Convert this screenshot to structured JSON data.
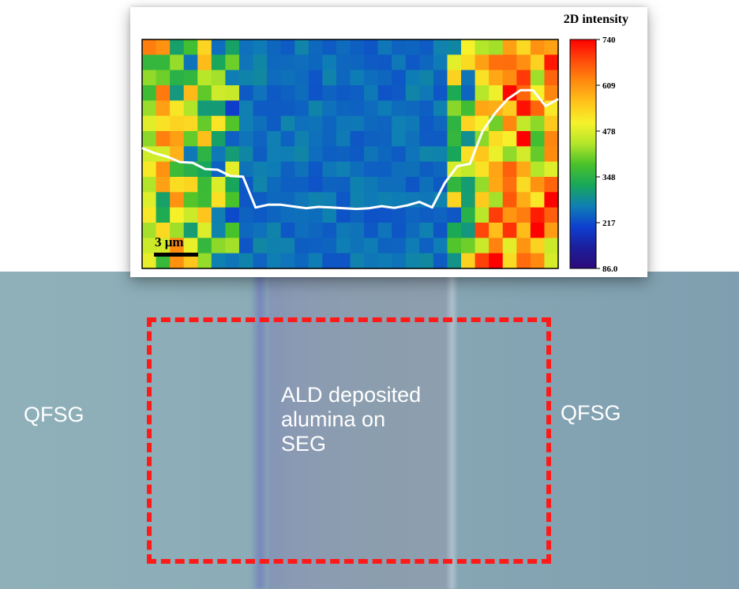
{
  "optical_image": {
    "left_label": "QFSG",
    "right_label": "QFSG",
    "center_label_lines": [
      "ALD deposited",
      "alumina on",
      "SEG"
    ],
    "box_color": "#ff1a1a"
  },
  "chart_data": {
    "type": "heatmap",
    "title": "2D intensity",
    "scale_bar": "3 μm",
    "colorbar": {
      "ticks": [
        "740",
        "609",
        "478",
        "348",
        "217",
        "86.0"
      ],
      "min": 86.0,
      "max": 740,
      "colors": [
        "#2d0a7a",
        "#1c1e9c",
        "#0d3fd0",
        "#0f7fb4",
        "#18a75a",
        "#49c22a",
        "#b4e62a",
        "#f6f22a",
        "#ffc21b",
        "#ff8a0f",
        "#ff4a0a",
        "#ff0000"
      ]
    },
    "grid": {
      "rows": 15,
      "cols": 30
    },
    "column_mean_intensity": [
      500,
      470,
      460,
      410,
      400,
      370,
      360,
      250,
      255,
      255,
      250,
      250,
      248,
      248,
      246,
      246,
      246,
      245,
      248,
      250,
      255,
      250,
      380,
      390,
      470,
      540,
      580,
      585,
      540,
      560
    ],
    "profile": [
      430,
      415,
      405,
      390,
      388,
      370,
      368,
      350,
      348,
      260,
      268,
      268,
      263,
      258,
      262,
      260,
      258,
      256,
      258,
      264,
      259,
      266,
      276,
      260,
      330,
      378,
      385,
      478,
      530,
      570,
      595,
      595,
      550,
      570
    ]
  }
}
